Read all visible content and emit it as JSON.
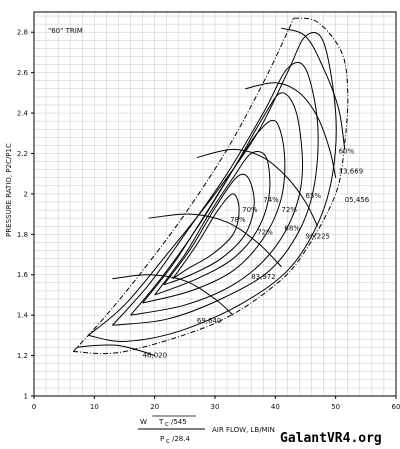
{
  "chart_data": {
    "type": "line",
    "title": "\"60\" TRIM",
    "ylabel": "PRESSURE RATIO, P2C/P1C",
    "xlabel": "AIR FLOW, LB/MIN",
    "xlabel_formula": {
      "w_part": "W",
      "t_part": "T",
      "t_sub": "c",
      "t_den": "/545",
      "p_part": "P",
      "p_sub": "c",
      "p_den": "/28.4"
    },
    "xlim": [
      0,
      60
    ],
    "ylim": [
      1.0,
      2.9
    ],
    "x_ticks": [
      "0",
      "10",
      "20",
      "30",
      "40",
      "50",
      "60"
    ],
    "y_ticks": [
      "1",
      "1.2",
      "1.4",
      "1.6",
      "1.8",
      "2",
      "2.2",
      "2.4",
      "2.6",
      "2.8"
    ],
    "grid": true,
    "surge_line": [
      [
        6.5,
        1.22
      ],
      [
        12,
        1.4
      ],
      [
        18,
        1.62
      ],
      [
        25,
        1.9
      ],
      [
        32,
        2.22
      ],
      [
        38,
        2.55
      ],
      [
        42,
        2.8
      ],
      [
        43,
        2.87
      ]
    ],
    "choke_line": [
      [
        6.5,
        1.22
      ],
      [
        15,
        1.22
      ],
      [
        30,
        1.36
      ],
      [
        40,
        1.55
      ],
      [
        45,
        1.72
      ],
      [
        50,
        2.0
      ],
      [
        51.5,
        2.25
      ],
      [
        52,
        2.5
      ],
      [
        51,
        2.7
      ],
      [
        47,
        2.85
      ],
      [
        43,
        2.87
      ]
    ],
    "efficiency_islands": [
      {
        "label": "60%",
        "points": [
          [
            9,
            1.3
          ],
          [
            15,
            1.45
          ],
          [
            22,
            1.7
          ],
          [
            30,
            2.0
          ],
          [
            37,
            2.3
          ],
          [
            42,
            2.6
          ],
          [
            45,
            2.78
          ],
          [
            48,
            2.75
          ],
          [
            50,
            2.4
          ],
          [
            49.5,
            2.1
          ],
          [
            47,
            1.85
          ],
          [
            42,
            1.62
          ],
          [
            34,
            1.45
          ],
          [
            24,
            1.32
          ],
          [
            15,
            1.27
          ],
          [
            9,
            1.3
          ]
        ]
      },
      {
        "label": "65%",
        "points": [
          [
            13,
            1.35
          ],
          [
            19,
            1.55
          ],
          [
            25,
            1.8
          ],
          [
            32,
            2.1
          ],
          [
            38,
            2.4
          ],
          [
            42,
            2.62
          ],
          [
            45,
            2.62
          ],
          [
            47,
            2.35
          ],
          [
            46.5,
            2.05
          ],
          [
            44,
            1.82
          ],
          [
            39,
            1.62
          ],
          [
            31,
            1.48
          ],
          [
            22,
            1.38
          ],
          [
            13,
            1.35
          ]
        ]
      },
      {
        "label": "68%",
        "points": [
          [
            16,
            1.4
          ],
          [
            21,
            1.58
          ],
          [
            27,
            1.83
          ],
          [
            33,
            2.12
          ],
          [
            38,
            2.38
          ],
          [
            41,
            2.5
          ],
          [
            43.5,
            2.4
          ],
          [
            44.5,
            2.12
          ],
          [
            43,
            1.9
          ],
          [
            39,
            1.7
          ],
          [
            33,
            1.55
          ],
          [
            25,
            1.45
          ],
          [
            16,
            1.4
          ]
        ]
      },
      {
        "label": "72%",
        "points": [
          [
            18,
            1.46
          ],
          [
            23,
            1.65
          ],
          [
            28,
            1.88
          ],
          [
            33,
            2.12
          ],
          [
            37,
            2.3
          ],
          [
            40,
            2.36
          ],
          [
            41.5,
            2.2
          ],
          [
            41,
            1.98
          ],
          [
            38,
            1.78
          ],
          [
            33,
            1.62
          ],
          [
            26,
            1.52
          ],
          [
            18,
            1.46
          ]
        ]
      },
      {
        "label": "74%",
        "points": [
          [
            20,
            1.5
          ],
          [
            25,
            1.7
          ],
          [
            29,
            1.9
          ],
          [
            33,
            2.08
          ],
          [
            36,
            2.2
          ],
          [
            38.5,
            2.18
          ],
          [
            39,
            2.0
          ],
          [
            37,
            1.82
          ],
          [
            33,
            1.68
          ],
          [
            27,
            1.58
          ],
          [
            20,
            1.5
          ]
        ]
      },
      {
        "label": "76%",
        "points": [
          [
            21.5,
            1.55
          ],
          [
            26,
            1.73
          ],
          [
            30,
            1.93
          ],
          [
            33.5,
            2.08
          ],
          [
            35.5,
            2.08
          ],
          [
            36.5,
            1.95
          ],
          [
            35,
            1.8
          ],
          [
            31,
            1.68
          ],
          [
            26,
            1.6
          ],
          [
            21.5,
            1.55
          ]
        ]
      },
      {
        "label": "78%",
        "points": [
          [
            23,
            1.58
          ],
          [
            27,
            1.75
          ],
          [
            30.5,
            1.92
          ],
          [
            33,
            2.0
          ],
          [
            34,
            1.92
          ],
          [
            33,
            1.8
          ],
          [
            29.5,
            1.7
          ],
          [
            25.5,
            1.63
          ],
          [
            23,
            1.58
          ]
        ]
      }
    ],
    "speed_lines": [
      {
        "label": "46,020",
        "points": [
          [
            7,
            1.24
          ],
          [
            10,
            1.25
          ],
          [
            14,
            1.25
          ],
          [
            18,
            1.22
          ],
          [
            20,
            1.2
          ]
        ]
      },
      {
        "label": "69,640",
        "points": [
          [
            13,
            1.58
          ],
          [
            19,
            1.6
          ],
          [
            25,
            1.57
          ],
          [
            30,
            1.48
          ],
          [
            33,
            1.4
          ]
        ]
      },
      {
        "label": "83,972",
        "points": [
          [
            19,
            1.88
          ],
          [
            26,
            1.9
          ],
          [
            32,
            1.86
          ],
          [
            37,
            1.76
          ],
          [
            41,
            1.64
          ]
        ]
      },
      {
        "label": "96,225",
        "points": [
          [
            27,
            2.18
          ],
          [
            33,
            2.22
          ],
          [
            38,
            2.18
          ],
          [
            42,
            2.08
          ],
          [
            45,
            1.96
          ],
          [
            47,
            1.84
          ]
        ]
      },
      {
        "label": "105,456",
        "points": [
          [
            35,
            2.52
          ],
          [
            40,
            2.55
          ],
          [
            44,
            2.5
          ],
          [
            47,
            2.38
          ],
          [
            49,
            2.22
          ],
          [
            50,
            2.08
          ]
        ]
      },
      {
        "label": "113,669",
        "points": [
          [
            41,
            2.82
          ],
          [
            45,
            2.78
          ],
          [
            48,
            2.62
          ],
          [
            50.5,
            2.42
          ],
          [
            51.5,
            2.22
          ]
        ]
      }
    ],
    "annotations": [
      {
        "text": "60%",
        "x": 50.5,
        "y": 2.2
      },
      {
        "text": "13,669",
        "x": 50.5,
        "y": 2.1
      },
      {
        "text": "65%",
        "x": 45,
        "y": 1.98
      },
      {
        "text": "05,456",
        "x": 51.5,
        "y": 1.96
      },
      {
        "text": "74%",
        "x": 38,
        "y": 1.96
      },
      {
        "text": "70%",
        "x": 34.5,
        "y": 1.91
      },
      {
        "text": "72%",
        "x": 41,
        "y": 1.91
      },
      {
        "text": "78%",
        "x": 32.5,
        "y": 1.86
      },
      {
        "text": "72%",
        "x": 37,
        "y": 1.8
      },
      {
        "text": "68%",
        "x": 41.5,
        "y": 1.82
      },
      {
        "text": "96,225",
        "x": 45,
        "y": 1.78
      },
      {
        "text": "83,972",
        "x": 36,
        "y": 1.58
      },
      {
        "text": "69,640",
        "x": 27,
        "y": 1.36
      },
      {
        "text": "46,020",
        "x": 18,
        "y": 1.19
      }
    ]
  },
  "watermark": "GalantVR4.org"
}
